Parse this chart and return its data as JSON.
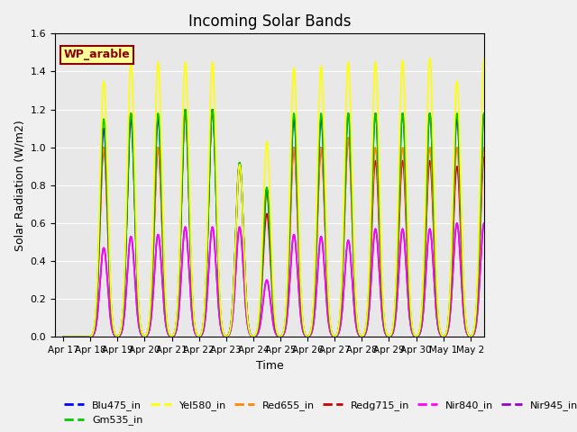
{
  "title": "Incoming Solar Bands",
  "xlabel": "Time",
  "ylabel": "Solar Radiation (W/m2)",
  "ylim": [
    0,
    1.6
  ],
  "background_color": "#e8e8e8",
  "wp_label": "WP_arable",
  "wp_label_color": "#8B0000",
  "wp_box_facecolor": "#ffff99",
  "wp_box_edgecolor": "#8B0000",
  "xtick_labels": [
    "Apr 17",
    "Apr 18",
    "Apr 19",
    "Apr 20",
    "Apr 21",
    "Apr 22",
    "Apr 23",
    "Apr 24",
    "Apr 25",
    "Apr 26",
    "Apr 27",
    "Apr 28",
    "Apr 29",
    "Apr 30",
    "May 1",
    "May 2"
  ],
  "ytick_labels": [
    "0.0",
    "0.2",
    "0.4",
    "0.6",
    "0.8",
    "1.0",
    "1.2",
    "1.4",
    "1.6"
  ],
  "ytick_values": [
    0.0,
    0.2,
    0.4,
    0.6,
    0.8,
    1.0,
    1.2,
    1.4,
    1.6
  ],
  "n_days": 16,
  "peaks_yel": [
    0.0,
    1.35,
    1.45,
    1.45,
    1.45,
    1.45,
    0.91,
    1.03,
    1.42,
    1.43,
    1.45,
    1.45,
    1.46,
    1.47,
    1.35,
    1.47
  ],
  "peaks_red": [
    0.0,
    1.0,
    1.18,
    1.0,
    1.18,
    1.2,
    0.91,
    0.75,
    1.0,
    1.0,
    1.05,
    1.0,
    1.0,
    1.0,
    1.0,
    1.0
  ],
  "peaks_redg": [
    0.0,
    1.0,
    1.18,
    1.0,
    1.18,
    1.2,
    0.91,
    0.65,
    1.0,
    1.0,
    1.05,
    0.93,
    0.93,
    0.93,
    0.9,
    0.95
  ],
  "peaks_nir840": [
    0.0,
    0.47,
    0.53,
    0.54,
    0.58,
    0.58,
    0.58,
    0.3,
    0.54,
    0.53,
    0.51,
    0.57,
    0.57,
    0.57,
    0.6,
    0.6
  ],
  "peaks_nir945": [
    0.0,
    0.47,
    0.53,
    0.54,
    0.58,
    0.58,
    0.58,
    0.3,
    0.54,
    0.53,
    0.51,
    0.57,
    0.57,
    0.57,
    0.6,
    0.6
  ],
  "peaks_blu": [
    0.0,
    1.1,
    1.15,
    1.15,
    1.2,
    1.2,
    0.92,
    0.78,
    1.15,
    1.15,
    1.18,
    1.18,
    1.18,
    1.18,
    1.15,
    1.18
  ],
  "peaks_grn": [
    0.0,
    1.15,
    1.18,
    1.18,
    1.2,
    1.2,
    0.92,
    0.79,
    1.18,
    1.18,
    1.18,
    1.18,
    1.18,
    1.18,
    1.18,
    1.18
  ],
  "legend_colors": [
    "#0000ff",
    "#00cc00",
    "#ffff00",
    "#ff8800",
    "#cc0000",
    "#ff00ff",
    "#9900cc"
  ],
  "legend_labels": [
    "Blu475_in",
    "Gm535_in",
    "Yel580_in",
    "Red655_in",
    "Redg715_in",
    "Nir840_in",
    "Nir945_in"
  ]
}
